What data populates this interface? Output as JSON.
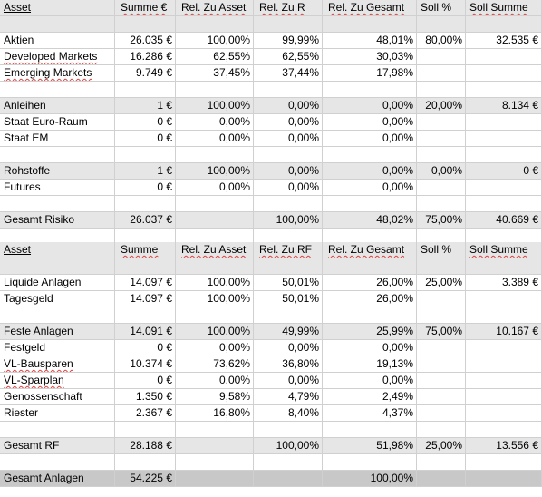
{
  "table1": {
    "header": [
      "Asset",
      "Summe €",
      "Rel. Zu Asset",
      "Rel. Zu R",
      "Rel. Zu Gesamt",
      "Soll %",
      "Soll Summe"
    ],
    "rows": [
      {
        "type": "data",
        "shade": "gray",
        "cells": [
          "",
          "",
          "",
          "",
          "",
          "",
          ""
        ]
      },
      {
        "type": "data",
        "shade": "none",
        "cells": [
          "Aktien",
          "26.035 €",
          "100,00%",
          "99,99%",
          "48,01%",
          "80,00%",
          "32.535 €"
        ]
      },
      {
        "type": "data",
        "shade": "none",
        "cells": [
          "Developed Markets",
          "16.286 €",
          "62,55%",
          "62,55%",
          "30,03%",
          "",
          ""
        ]
      },
      {
        "type": "data",
        "shade": "none",
        "cells": [
          "Emerging Markets",
          "9.749 €",
          "37,45%",
          "37,44%",
          "17,98%",
          "",
          ""
        ]
      },
      {
        "type": "data",
        "shade": "none",
        "cells": [
          "",
          "",
          "",
          "",
          "",
          "",
          ""
        ]
      },
      {
        "type": "data",
        "shade": "gray",
        "cells": [
          "Anleihen",
          "1 €",
          "100,00%",
          "0,00%",
          "0,00%",
          "20,00%",
          "8.134 €"
        ]
      },
      {
        "type": "data",
        "shade": "none",
        "cells": [
          "Staat Euro-Raum",
          "0 €",
          "0,00%",
          "0,00%",
          "0,00%",
          "",
          ""
        ]
      },
      {
        "type": "data",
        "shade": "none",
        "cells": [
          "Staat EM",
          "0 €",
          "0,00%",
          "0,00%",
          "0,00%",
          "",
          ""
        ]
      },
      {
        "type": "data",
        "shade": "none",
        "cells": [
          "",
          "",
          "",
          "",
          "",
          "",
          ""
        ]
      },
      {
        "type": "data",
        "shade": "gray",
        "cells": [
          "Rohstoffe",
          "1 €",
          "100,00%",
          "0,00%",
          "0,00%",
          "0,00%",
          "0 €"
        ]
      },
      {
        "type": "data",
        "shade": "none",
        "cells": [
          "Futures",
          "0 €",
          "0,00%",
          "0,00%",
          "0,00%",
          "",
          ""
        ]
      },
      {
        "type": "data",
        "shade": "none",
        "cells": [
          "",
          "",
          "",
          "",
          "",
          "",
          ""
        ]
      },
      {
        "type": "data",
        "shade": "gray",
        "cells": [
          "Gesamt Risiko",
          "26.037 €",
          "",
          "100,00%",
          "48,02%",
          "75,00%",
          "40.669 €"
        ]
      },
      {
        "type": "data",
        "shade": "none",
        "cells": [
          "",
          "",
          "",
          "",
          "",
          "",
          ""
        ]
      }
    ]
  },
  "table2": {
    "header": [
      "Asset",
      "Summe",
      "Rel. Zu Asset",
      "Rel. Zu RF",
      "Rel. Zu Gesamt",
      "Soll %",
      "Soll Summe"
    ],
    "rows": [
      {
        "type": "data",
        "shade": "gray",
        "cells": [
          "",
          "",
          "",
          "",
          "",
          "",
          ""
        ]
      },
      {
        "type": "data",
        "shade": "none",
        "cells": [
          "Liquide Anlagen",
          "14.097 €",
          "100,00%",
          "50,01%",
          "26,00%",
          "25,00%",
          "3.389 €"
        ]
      },
      {
        "type": "data",
        "shade": "none",
        "cells": [
          "Tagesgeld",
          "14.097 €",
          "100,00%",
          "50,01%",
          "26,00%",
          "",
          ""
        ]
      },
      {
        "type": "data",
        "shade": "none",
        "cells": [
          "",
          "",
          "",
          "",
          "",
          "",
          ""
        ]
      },
      {
        "type": "data",
        "shade": "gray",
        "cells": [
          "Feste Anlagen",
          "14.091 €",
          "100,00%",
          "49,99%",
          "25,99%",
          "75,00%",
          "10.167 €"
        ]
      },
      {
        "type": "data",
        "shade": "none",
        "cells": [
          "Festgeld",
          "0 €",
          "0,00%",
          "0,00%",
          "0,00%",
          "",
          ""
        ]
      },
      {
        "type": "data",
        "shade": "none",
        "cells": [
          "VL-Bausparen",
          "10.374 €",
          "73,62%",
          "36,80%",
          "19,13%",
          "",
          ""
        ]
      },
      {
        "type": "data",
        "shade": "none",
        "cells": [
          "VL-Sparplan",
          "0 €",
          "0,00%",
          "0,00%",
          "0,00%",
          "",
          ""
        ]
      },
      {
        "type": "data",
        "shade": "none",
        "cells": [
          "Genossenschaft",
          "1.350 €",
          "9,58%",
          "4,79%",
          "2,49%",
          "",
          ""
        ]
      },
      {
        "type": "data",
        "shade": "none",
        "cells": [
          "Riester",
          "2.367 €",
          "16,80%",
          "8,40%",
          "4,37%",
          "",
          ""
        ]
      },
      {
        "type": "data",
        "shade": "none",
        "cells": [
          "",
          "",
          "",
          "",
          "",
          "",
          ""
        ]
      },
      {
        "type": "data",
        "shade": "gray",
        "cells": [
          "Gesamt RF",
          "28.188 €",
          "",
          "100,00%",
          "51,98%",
          "25,00%",
          "13.556 €"
        ]
      },
      {
        "type": "data",
        "shade": "none",
        "cells": [
          "",
          "",
          "",
          "",
          "",
          "",
          ""
        ]
      },
      {
        "type": "data",
        "shade": "dark",
        "cells": [
          "Gesamt Anlagen",
          "54.225 €",
          "",
          "",
          "100,00%",
          "",
          ""
        ]
      }
    ]
  },
  "styles": {
    "gray": "#e6e6e6",
    "dark": "#c8c8c8",
    "gridline": "#d0d0d0",
    "spellcheck": "#e04040"
  }
}
